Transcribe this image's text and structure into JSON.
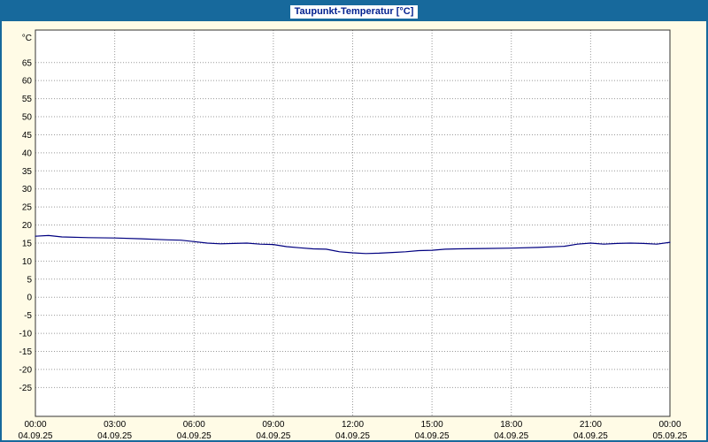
{
  "window": {
    "title": "Taupunkt-Temperatur [°C]"
  },
  "colors": {
    "window_border": "#17699c",
    "titlebar_bg": "#17699c",
    "title_label_bg": "#ffffff",
    "title_text": "#001f8e",
    "window_bg": "#fffbe6",
    "plot_bg": "#ffffff",
    "grid": "#999999",
    "plot_border": "#333333",
    "line": "#000080",
    "tick_text": "#000000"
  },
  "chart_data": {
    "type": "line",
    "title": "Taupunkt-Temperatur [°C]",
    "xlabel": "",
    "ylabel": "°C",
    "ylim": [
      -33,
      74
    ],
    "yticks": [
      65,
      60,
      55,
      50,
      45,
      40,
      35,
      30,
      25,
      20,
      15,
      10,
      5,
      0,
      -5,
      -10,
      -15,
      -20,
      -25
    ],
    "xlim": [
      0,
      24
    ],
    "xticks": [
      {
        "hour": 0,
        "time": "00:00",
        "date": "04.09.25"
      },
      {
        "hour": 3,
        "time": "03:00",
        "date": "04.09.25"
      },
      {
        "hour": 6,
        "time": "06:00",
        "date": "04.09.25"
      },
      {
        "hour": 9,
        "time": "09:00",
        "date": "04.09.25"
      },
      {
        "hour": 12,
        "time": "12:00",
        "date": "04.09.25"
      },
      {
        "hour": 15,
        "time": "15:00",
        "date": "04.09.25"
      },
      {
        "hour": 18,
        "time": "18:00",
        "date": "04.09.25"
      },
      {
        "hour": 21,
        "time": "21:00",
        "date": "04.09.25"
      },
      {
        "hour": 24,
        "time": "00:00",
        "date": "05.09.25"
      }
    ],
    "grid": true,
    "legend_position": "none",
    "series": [
      {
        "name": "Taupunkt-Temperatur",
        "color": "#000080",
        "x": [
          0,
          0.5,
          1,
          2,
          3,
          4,
          5,
          5.5,
          6,
          6.5,
          7,
          7.5,
          8,
          8.5,
          9,
          9.5,
          10,
          10.5,
          11,
          11.5,
          12,
          12.5,
          13,
          13.5,
          14,
          14.5,
          15,
          15.5,
          16,
          17,
          18,
          19,
          20,
          20.5,
          21,
          21.5,
          22,
          22.5,
          23,
          23.5,
          24
        ],
        "y": [
          16.9,
          17.1,
          16.7,
          16.5,
          16.4,
          16.2,
          15.9,
          15.8,
          15.4,
          15.0,
          14.8,
          14.9,
          15.0,
          14.7,
          14.6,
          14.0,
          13.7,
          13.4,
          13.3,
          12.6,
          12.3,
          12.1,
          12.2,
          12.4,
          12.6,
          12.9,
          13.0,
          13.3,
          13.4,
          13.5,
          13.6,
          13.8,
          14.1,
          14.7,
          15.0,
          14.7,
          14.9,
          15.0,
          14.9,
          14.7,
          15.2
        ]
      }
    ]
  }
}
